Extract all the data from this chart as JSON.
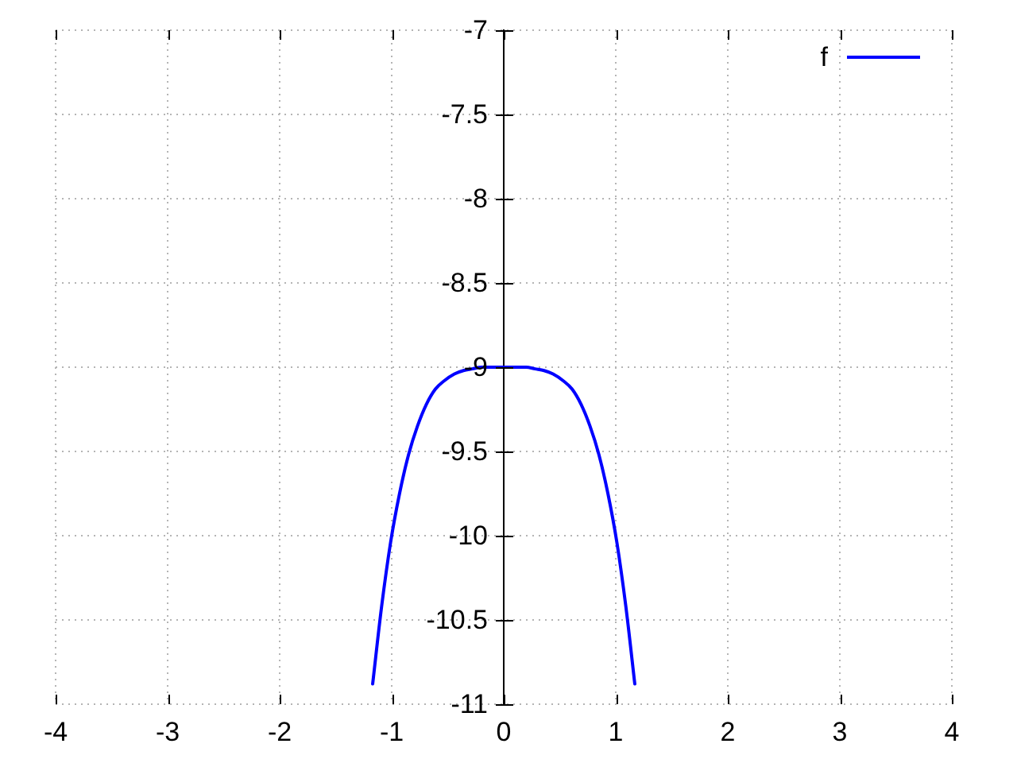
{
  "chart_data": {
    "type": "line",
    "x": [
      -1.17,
      -1.09,
      -1.01,
      -0.93,
      -0.85,
      -0.77,
      -0.69,
      -0.61,
      -0.53,
      -0.44,
      -0.36,
      -0.28,
      -0.2,
      -0.12,
      -0.04,
      0.04,
      0.12,
      0.2,
      0.28,
      0.36,
      0.44,
      0.53,
      0.61,
      0.69,
      0.77,
      0.85,
      0.93,
      1.01,
      1.09,
      1.17
    ],
    "series": [
      {
        "name": "f",
        "color": "#0000ff",
        "values": [
          -10.88,
          -10.42,
          -10.04,
          -9.75,
          -9.52,
          -9.35,
          -9.22,
          -9.13,
          -9.08,
          -9.04,
          -9.02,
          -9.01,
          -9,
          -9,
          -9,
          -9,
          -9,
          -9,
          -9.01,
          -9.02,
          -9.04,
          -9.08,
          -9.13,
          -9.22,
          -9.35,
          -9.52,
          -9.75,
          -10.04,
          -10.42,
          -10.88
        ]
      }
    ],
    "xlim": [
      -4,
      4
    ],
    "xticks": [
      -4,
      -3,
      -2,
      -1,
      0,
      1,
      2,
      3,
      4
    ],
    "ylim": [
      -11,
      -7
    ],
    "yticks": [
      -11,
      -10.5,
      -10,
      -9.5,
      -9,
      -8.5,
      -8,
      -7.5,
      -7
    ],
    "grid": true,
    "legend": "top right",
    "marker": "none",
    "line_style": "solid"
  }
}
